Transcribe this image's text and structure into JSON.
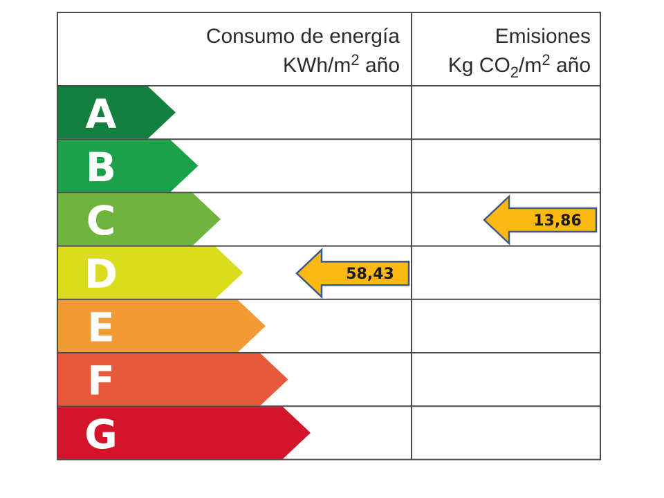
{
  "header": {
    "energy_title": "Consumo de energía",
    "energy_unit_prefix": "KWh/m",
    "energy_unit_sup": "2",
    "energy_unit_suffix": " año",
    "emissions_title": "Emisiones",
    "emissions_unit_prefix": "Kg CO",
    "emissions_unit_sub": "2",
    "emissions_unit_mid": "/m",
    "emissions_unit_sup": "2",
    "emissions_unit_suffix": " año"
  },
  "chart_data": {
    "type": "table",
    "ratings": [
      {
        "letter": "A",
        "color": "#13803f"
      },
      {
        "letter": "B",
        "color": "#1aa14a"
      },
      {
        "letter": "C",
        "color": "#6fb43f"
      },
      {
        "letter": "D",
        "color": "#dcdc1e"
      },
      {
        "letter": "E",
        "color": "#f29a34"
      },
      {
        "letter": "F",
        "color": "#e8593b"
      },
      {
        "letter": "G",
        "color": "#d2152b"
      }
    ],
    "energy": {
      "rating": "D",
      "value_label": "58,43",
      "arrow_color": "#fdb913"
    },
    "emissions": {
      "rating": "C",
      "value_label": "13,86",
      "arrow_color": "#fdb913"
    }
  }
}
